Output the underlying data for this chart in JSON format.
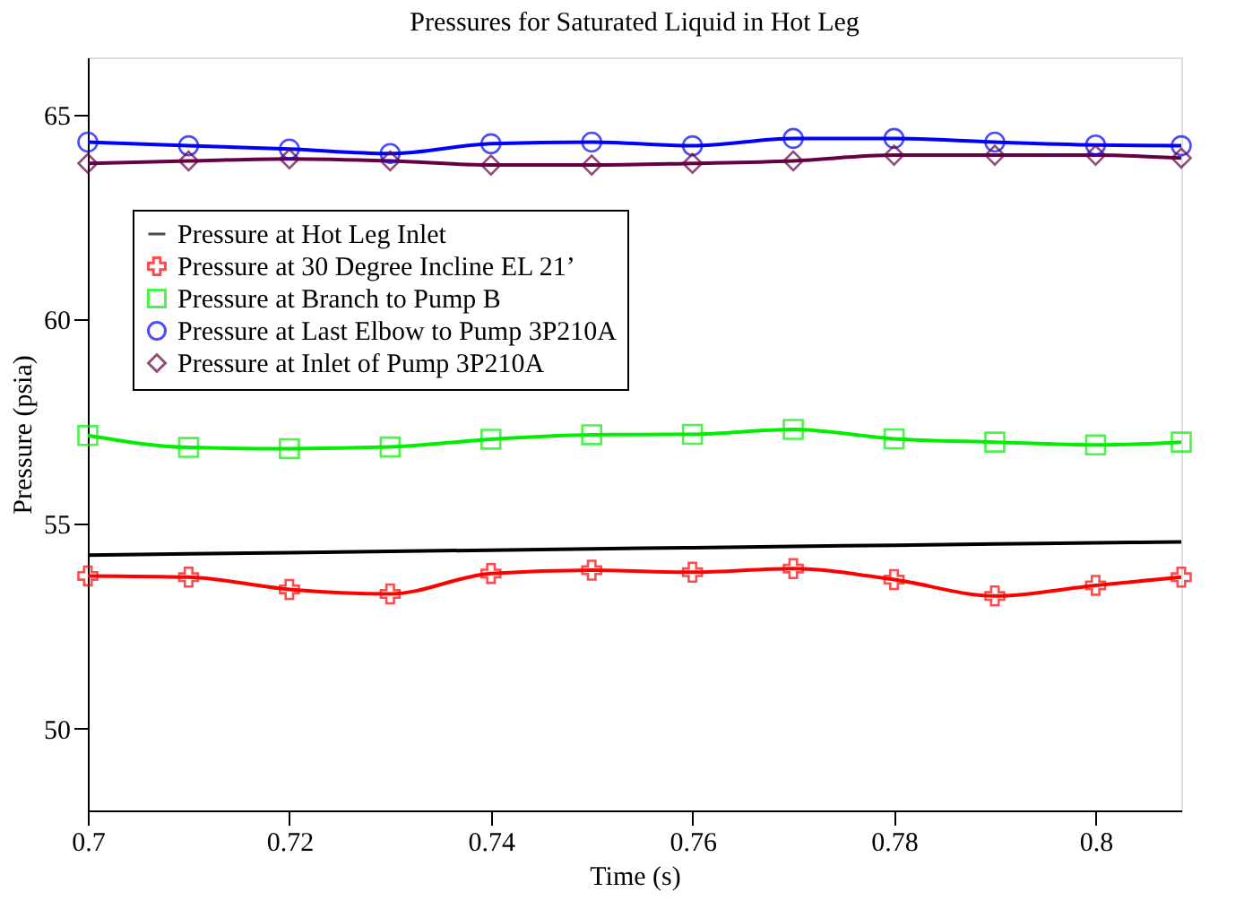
{
  "chart_data": {
    "type": "line",
    "title": "Pressures for Saturated Liquid in Hot Leg",
    "xlabel": "Time (s)",
    "ylabel": "Pressure (psia)",
    "x": [
      0.7,
      0.71,
      0.72,
      0.73,
      0.74,
      0.75,
      0.76,
      0.77,
      0.78,
      0.79,
      0.8,
      0.8085
    ],
    "series": [
      {
        "name": "Pressure at Hot Leg Inlet",
        "color": "#000000",
        "marker": "none",
        "values": [
          54.24,
          54.27,
          54.3,
          54.33,
          54.36,
          54.39,
          54.42,
          54.45,
          54.48,
          54.51,
          54.54,
          54.56
        ]
      },
      {
        "name": "Pressure at 30 Degree Incline EL 21’",
        "color": "#ff0000",
        "marker": "cross",
        "values": [
          53.73,
          53.7,
          53.4,
          53.29,
          53.79,
          53.87,
          53.82,
          53.91,
          53.64,
          53.24,
          53.5,
          53.7
        ]
      },
      {
        "name": "Pressure at Branch to Pump B",
        "color": "#00ee00",
        "marker": "square",
        "values": [
          57.16,
          56.87,
          56.84,
          56.88,
          57.07,
          57.18,
          57.19,
          57.31,
          57.08,
          57.0,
          56.93,
          57.0
        ]
      },
      {
        "name": "Pressure at Last Elbow to Pump 3P210A",
        "color": "#0000ff",
        "marker": "circle",
        "values": [
          64.33,
          64.24,
          64.16,
          64.05,
          64.29,
          64.33,
          64.24,
          64.42,
          64.42,
          64.33,
          64.26,
          64.24
        ]
      },
      {
        "name": "Pressure at Inlet of Pump 3P210A",
        "color": "#660044",
        "marker": "diamond",
        "values": [
          63.81,
          63.87,
          63.92,
          63.87,
          63.77,
          63.77,
          63.81,
          63.87,
          64.01,
          64.01,
          64.01,
          63.94
        ]
      }
    ],
    "xlim": [
      0.7,
      0.8085
    ],
    "xticks": [
      0.7,
      0.72,
      0.74,
      0.76,
      0.78,
      0.8
    ],
    "ylim": [
      48,
      66.4
    ],
    "yticks": [
      50,
      55,
      60,
      65
    ],
    "grid": false,
    "legend": "top left",
    "line_style": "solid"
  }
}
